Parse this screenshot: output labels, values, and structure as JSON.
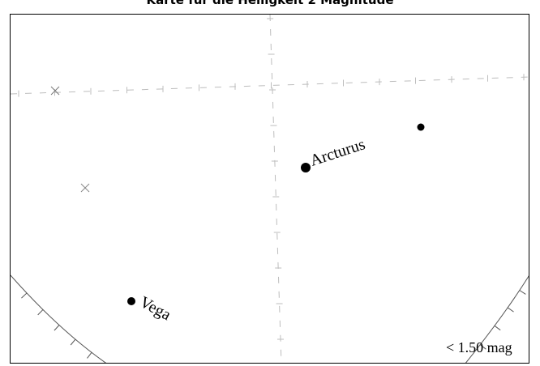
{
  "title": "Karte für die Helligkeit 2 Magnitude",
  "magnitude_label": "< 1.50 mag",
  "stars": [
    {
      "name": "Arcturus",
      "visible_label": true
    },
    {
      "name": "Vega",
      "visible_label": true
    },
    {
      "name": "",
      "visible_label": false
    }
  ],
  "colors": {
    "background": "#ffffff",
    "stars": "#000000",
    "grid": "#bdbdbd",
    "horizon": "#555555"
  }
}
